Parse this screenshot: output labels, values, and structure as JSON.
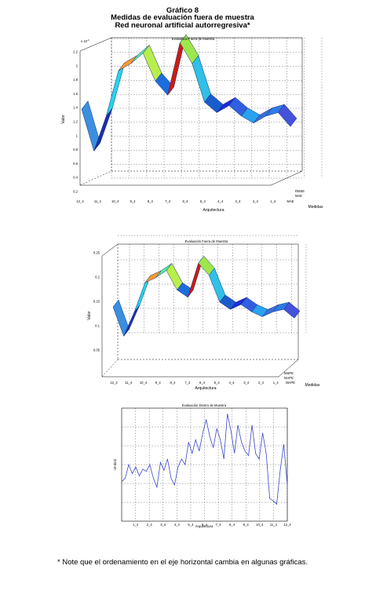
{
  "header": {
    "figure_number": "Gráfico 8",
    "title": "Medidas de evaluación fuera de muestra",
    "subtitle": "Red neuronal artificial autorregresiva*"
  },
  "note": "* Note que el ordenamiento en el eje horizontal cambia en algunas gráficas.",
  "chart_data": [
    {
      "type": "area",
      "title": "Evaluación Fuera de Muestra",
      "xlabel": "Arquitectura",
      "ylabel": "Valor",
      "zlabel": "Medidas",
      "exponent_label": "x 10",
      "exponent_power": "-4",
      "x_tick_labels": [
        "12_4",
        "11_4",
        "10_4",
        "9_4",
        "8_4",
        "7_4",
        "6_4",
        "5_4",
        "4_4",
        "3_4",
        "2_4",
        "1_4",
        "MAE"
      ],
      "depth_tick_labels": [
        "RMSE",
        "MAE"
      ],
      "ylim": [
        0.2,
        2.2
      ],
      "y_ticks": [
        "0.2",
        "0.4",
        "0.6",
        "0.8",
        "1",
        "1.2",
        "1.4",
        "1.6",
        "1.8",
        "2",
        "2.2"
      ],
      "values": [
        1.0,
        0.4,
        0.9,
        1.55,
        1.65,
        1.8,
        1.4,
        1.2,
        1.95,
        1.65,
        1.1,
        0.95,
        1.05,
        0.9,
        0.8,
        0.9,
        0.95,
        0.75
      ],
      "colors": [
        "#3a8fe0",
        "#1c2db0",
        "#22d6ee",
        "#ff9a2e",
        "#57e8a6",
        "#b8ef4a",
        "#1d6de0",
        "#d01a12",
        "#9de74c",
        "#30c0e8",
        "#1b5ccc",
        "#1f2ad8",
        "#3060e0",
        "#2aa2f0",
        "#3c6ed8",
        "#2f7ae6",
        "#4452dc",
        "#2b5ce4"
      ]
    },
    {
      "type": "area",
      "title": "Evaluación Fuera de Muestra",
      "xlabel": "Arquitectura",
      "ylabel": "Valor",
      "zlabel": "Medidas",
      "x_tick_labels": [
        "12_4",
        "11_4",
        "10_4",
        "9_4",
        "8_4",
        "7_4",
        "6_4",
        "5_4",
        "4_4",
        "3_4",
        "2_4",
        "1_4",
        "MAPE"
      ],
      "depth_tick_labels": [
        "MSPE",
        "MAPE"
      ],
      "ylim": [
        0.0,
        0.2
      ],
      "y_ticks": [
        "0.05",
        "0.1",
        "0.15",
        "0.2",
        "0.25"
      ],
      "values": [
        0.95,
        0.35,
        0.85,
        1.45,
        1.55,
        1.7,
        1.3,
        1.15,
        1.85,
        1.6,
        1.05,
        0.9,
        1.0,
        0.85,
        0.75,
        0.85,
        0.9,
        0.72
      ],
      "colors": [
        "#3a8fe0",
        "#1c2db0",
        "#22d6ee",
        "#ff9a2e",
        "#57e8a6",
        "#b8ef4a",
        "#1d6de0",
        "#d01a12",
        "#9de74c",
        "#30c0e8",
        "#1b5ccc",
        "#1f2ad8",
        "#3060e0",
        "#2aa2f0",
        "#3c6ed8",
        "#2f7ae6",
        "#4452dc",
        "#2b5ce4"
      ]
    },
    {
      "type": "line",
      "title": "Evaluación Dentro de Muestra",
      "xlabel": "Arquitectura",
      "ylabel": "Umbral",
      "x_tick_labels": [
        "1_4",
        "2_4",
        "3_4",
        "4_4",
        "5_4",
        "6_4",
        "7_4",
        "8_4",
        "9_4",
        "10_4",
        "11_4",
        "12_4"
      ],
      "values": [
        0.35,
        0.38,
        0.5,
        0.42,
        0.48,
        0.4,
        0.46,
        0.44,
        0.5,
        0.38,
        0.3,
        0.52,
        0.45,
        0.55,
        0.38,
        0.32,
        0.48,
        0.55,
        0.5,
        0.7,
        0.6,
        0.72,
        0.62,
        0.78,
        0.9,
        0.75,
        0.65,
        0.82,
        0.72,
        0.55,
        0.95,
        0.8,
        0.6,
        0.85,
        0.7,
        0.62,
        0.58,
        0.85,
        0.6,
        0.55,
        0.78,
        0.6,
        0.2,
        0.18,
        0.15,
        0.45,
        0.68,
        0.32
      ],
      "line_color": "#3a48c8"
    }
  ]
}
